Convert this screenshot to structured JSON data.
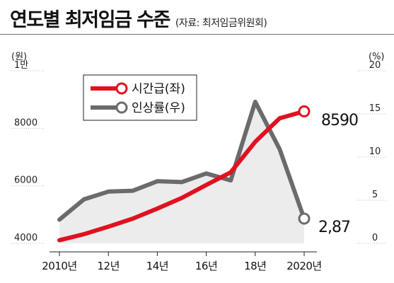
{
  "header": {
    "title": "연도별 최저임금 수준",
    "source": "(자료: 최저임금위원회)"
  },
  "colors": {
    "wage": "#e1111f",
    "rate": "#6b6b6b",
    "area": "#ececec"
  },
  "chart_data": {
    "type": "line",
    "x": [
      2010,
      2011,
      2012,
      2013,
      2014,
      2015,
      2016,
      2017,
      2018,
      2019,
      2020
    ],
    "x_tick_labels": [
      "2010년",
      "12년",
      "14년",
      "16년",
      "18년",
      "2020년"
    ],
    "x_tick_values": [
      2010,
      2012,
      2014,
      2016,
      2018,
      2020
    ],
    "y_left": {
      "unit": "(원)",
      "tick_labels": [
        "4000",
        "6000",
        "8000",
        "1만"
      ],
      "tick_values": [
        4000,
        6000,
        8000,
        10000
      ],
      "range": [
        4000,
        10000
      ]
    },
    "y_right": {
      "unit": "(%)",
      "tick_labels": [
        "0",
        "5",
        "10",
        "15",
        "20"
      ],
      "tick_values": [
        0,
        5,
        10,
        15,
        20
      ],
      "range": [
        0,
        20
      ]
    },
    "series": [
      {
        "name": "시간급(좌)",
        "axis": "left",
        "values": [
          4110,
          4320,
          4580,
          4860,
          5210,
          5580,
          6030,
          6470,
          7530,
          8350,
          8590
        ],
        "end_label": "8590"
      },
      {
        "name": "인상률(우)",
        "axis": "right",
        "values": [
          2.75,
          5.1,
          6.0,
          6.1,
          7.2,
          7.1,
          8.1,
          7.3,
          16.4,
          10.9,
          2.87
        ],
        "end_label": "2,87"
      }
    ],
    "legend": "top-left"
  }
}
